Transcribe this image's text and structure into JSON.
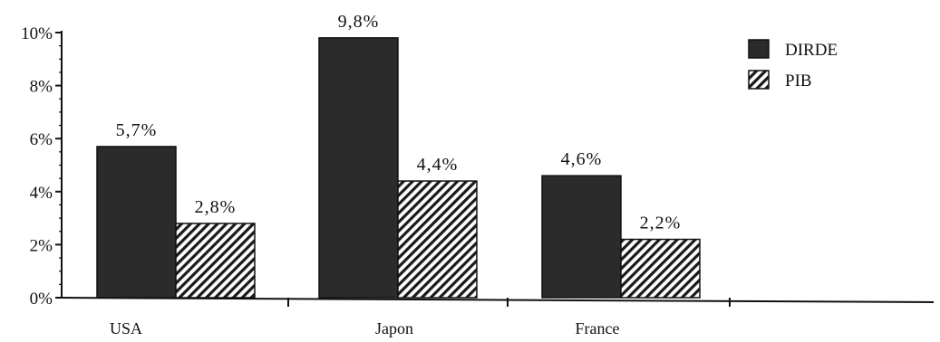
{
  "chart_data": {
    "type": "bar",
    "categories": [
      "USA",
      "Japon",
      "France"
    ],
    "series": [
      {
        "name": "DIRDE",
        "values": [
          5.7,
          9.8,
          4.6
        ],
        "labels": [
          "5,7%",
          "9,8%",
          "4,6%"
        ],
        "fill": "solid"
      },
      {
        "name": "PIB",
        "values": [
          2.8,
          4.4,
          2.2
        ],
        "labels": [
          "2,8%",
          "4,4%",
          "2,2%"
        ],
        "fill": "hatched"
      }
    ],
    "ylim": [
      0,
      10
    ],
    "yticks": [
      0,
      2,
      4,
      6,
      8,
      10
    ],
    "ytick_labels": [
      "0%",
      "2%",
      "4%",
      "6%",
      "8%",
      "10%"
    ],
    "title": "",
    "xlabel": "",
    "ylabel": "",
    "legend_position": "top-right",
    "grid": false,
    "colors": {
      "solid": "#2b2b2b",
      "hatch": "#1a1a1a",
      "axis": "#111111"
    }
  }
}
